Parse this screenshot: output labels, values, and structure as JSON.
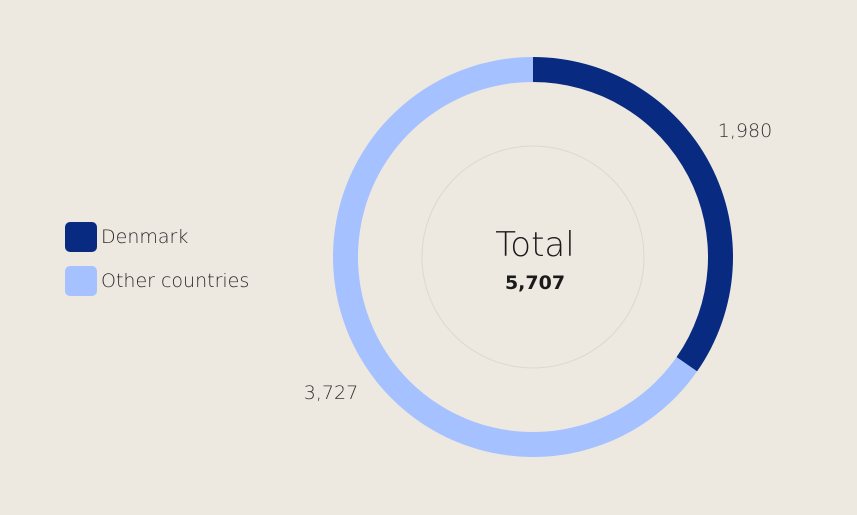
{
  "chart_data": {
    "type": "pie",
    "variant": "donut",
    "categories": [
      "Denmark",
      "Other countries"
    ],
    "values": [
      1980,
      3727
    ],
    "value_labels": [
      "1,980",
      "3,727"
    ],
    "colors": [
      "#082a80",
      "#a6c1ff"
    ],
    "center_title": "Total",
    "center_value": "5,707",
    "legend_placement": "left"
  }
}
